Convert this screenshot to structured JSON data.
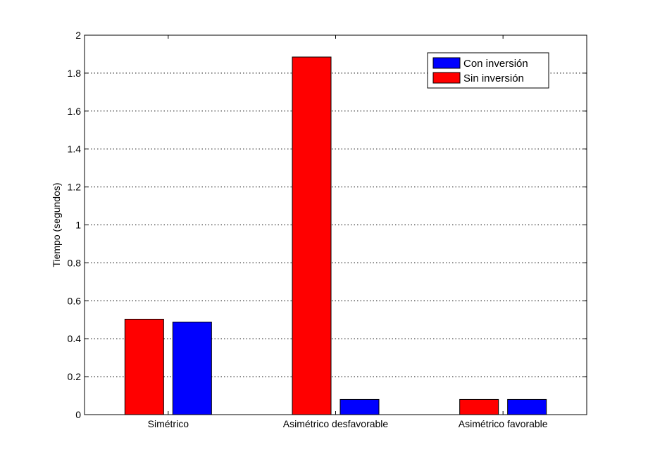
{
  "chart_data": {
    "type": "bar",
    "title": "",
    "xlabel": "",
    "ylabel": "Tiempo (segundos)",
    "ylim": [
      0,
      2
    ],
    "yticks": [
      0,
      0.2,
      0.4,
      0.6,
      0.8,
      1,
      1.2,
      1.4,
      1.6,
      1.8,
      2
    ],
    "ytick_labels": [
      "0",
      "0.2",
      "0.4",
      "0.6",
      "0.8",
      "1",
      "1.2",
      "1.4",
      "1.6",
      "1.8",
      "2"
    ],
    "categories": [
      "Simétrico",
      "Asimétrico desfavorable",
      "Asimétrico favorable"
    ],
    "series": [
      {
        "name": "Sin inversión",
        "color": "#ff0000",
        "values": [
          0.503,
          1.885,
          0.08
        ]
      },
      {
        "name": "Con inversión",
        "color": "#0000ff",
        "values": [
          0.488,
          0.08,
          0.08
        ]
      }
    ],
    "legend": {
      "placement": "top-right",
      "entries": [
        {
          "label": "Con inversión",
          "color": "#0000ff"
        },
        {
          "label": "Sin inversión",
          "color": "#ff0000"
        }
      ]
    },
    "grid": {
      "y": true,
      "x": false,
      "style": "dotted"
    }
  }
}
